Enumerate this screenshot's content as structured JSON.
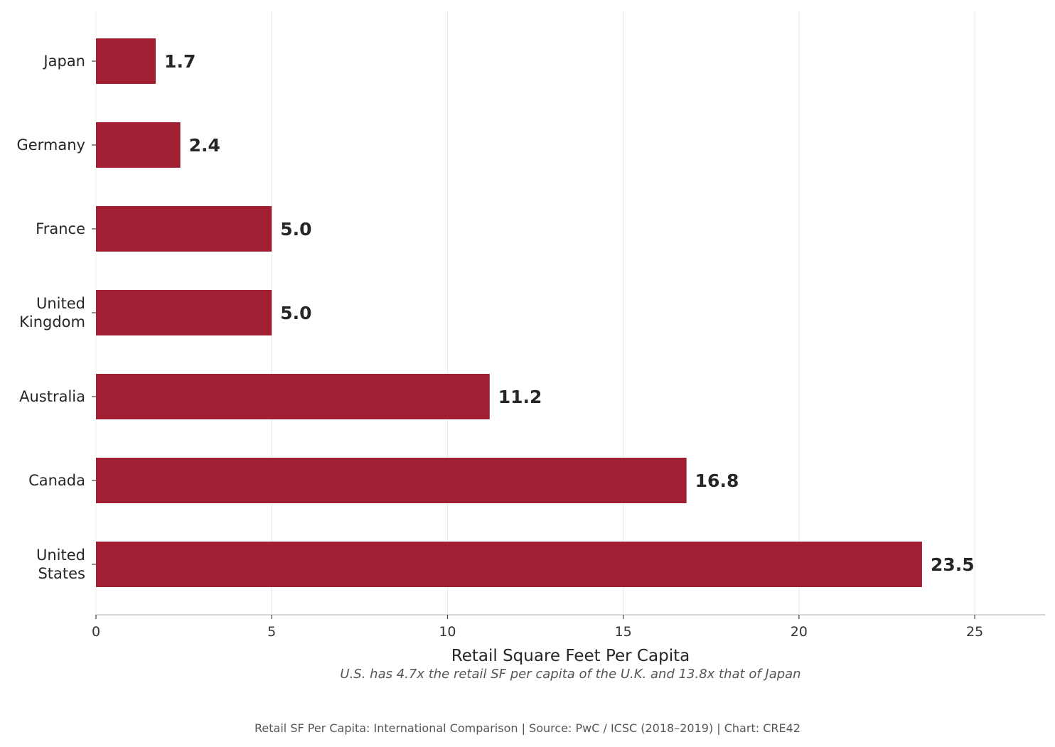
{
  "chart_data": {
    "type": "bar",
    "orientation": "horizontal",
    "categories": [
      "Japan",
      "Germany",
      "France",
      "United\nKingdom",
      "Australia",
      "Canada",
      "United\nStates"
    ],
    "values": [
      1.7,
      2.4,
      5.0,
      5.0,
      11.2,
      16.8,
      23.5
    ],
    "value_labels": [
      "1.7",
      "2.4",
      "5.0",
      "5.0",
      "11.2",
      "16.8",
      "23.5"
    ],
    "xlabel": "Retail Square Feet Per Capita",
    "ylabel": "",
    "xlim": [
      0,
      27
    ],
    "xticks": [
      0,
      5,
      10,
      15,
      20,
      25
    ],
    "grid": "vertical",
    "annotation": "U.S. has 4.7x the retail SF per capita of the U.K. and 13.8x that of Japan",
    "footer": "Retail SF Per Capita: International Comparison | Source: PwC / ICSC (2018–2019) | Chart: CRE42",
    "colors": {
      "bar": "#A11F33",
      "grid": "#E8E8E8",
      "axis": "#CCCCCC"
    }
  }
}
